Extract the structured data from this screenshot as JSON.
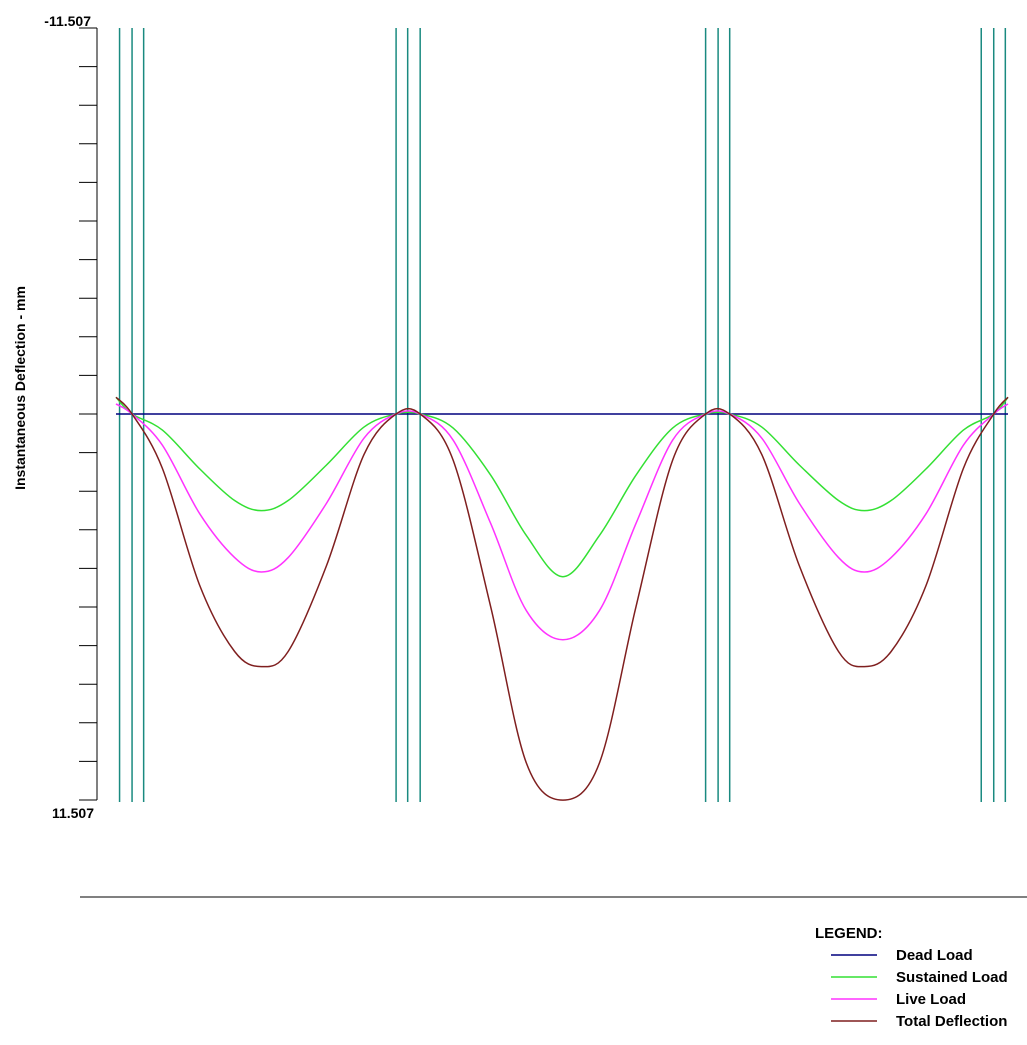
{
  "chart_data": {
    "type": "line",
    "ylabel": "Instantaneous Deflection - mm",
    "xlabel": "",
    "title": "",
    "ylim": [
      -11.507,
      11.507
    ],
    "y_inverted": true,
    "y_tick_labels": {
      "top": "-11.507",
      "bottom": "11.507"
    },
    "y_minor_tick_count": 19,
    "x_range": [
      0,
      1
    ],
    "span_count": 3,
    "support_line_groups": [
      [
        0.004,
        0.018,
        0.031
      ],
      [
        0.314,
        0.327,
        0.341
      ],
      [
        0.661,
        0.675,
        0.688
      ],
      [
        0.97,
        0.984,
        0.997
      ]
    ],
    "series": [
      {
        "name": "Dead Load",
        "color": "#00007f",
        "points": [
          [
            0,
            0
          ],
          [
            1,
            0
          ]
        ]
      },
      {
        "name": "Sustained Load",
        "color": "#33e033",
        "points": [
          [
            0,
            -0.5
          ],
          [
            0.018,
            0
          ],
          [
            0.052,
            0.48
          ],
          [
            0.094,
            1.64
          ],
          [
            0.133,
            2.58
          ],
          [
            0.163,
            2.88
          ],
          [
            0.193,
            2.58
          ],
          [
            0.236,
            1.52
          ],
          [
            0.278,
            0.39
          ],
          [
            0.314,
            0
          ],
          [
            0.341,
            0
          ],
          [
            0.378,
            0.42
          ],
          [
            0.42,
            1.82
          ],
          [
            0.46,
            3.62
          ],
          [
            0.501,
            4.85
          ],
          [
            0.542,
            3.62
          ],
          [
            0.583,
            1.82
          ],
          [
            0.624,
            0.42
          ],
          [
            0.661,
            0
          ],
          [
            0.688,
            0
          ],
          [
            0.724,
            0.39
          ],
          [
            0.766,
            1.52
          ],
          [
            0.81,
            2.58
          ],
          [
            0.839,
            2.88
          ],
          [
            0.869,
            2.58
          ],
          [
            0.908,
            1.64
          ],
          [
            0.95,
            0.48
          ],
          [
            0.984,
            0
          ],
          [
            1,
            -0.5
          ]
        ]
      },
      {
        "name": "Live Load",
        "color": "#ff33ff",
        "points": [
          [
            0,
            -0.3
          ],
          [
            0.018,
            0
          ],
          [
            0.052,
            0.93
          ],
          [
            0.094,
            2.98
          ],
          [
            0.133,
            4.28
          ],
          [
            0.163,
            4.71
          ],
          [
            0.193,
            4.28
          ],
          [
            0.236,
            2.66
          ],
          [
            0.278,
            0.72
          ],
          [
            0.314,
            0
          ],
          [
            0.341,
            0
          ],
          [
            0.378,
            0.78
          ],
          [
            0.42,
            3.26
          ],
          [
            0.46,
            5.86
          ],
          [
            0.501,
            6.73
          ],
          [
            0.542,
            5.86
          ],
          [
            0.583,
            3.26
          ],
          [
            0.624,
            0.78
          ],
          [
            0.661,
            0
          ],
          [
            0.688,
            0
          ],
          [
            0.724,
            0.72
          ],
          [
            0.766,
            2.66
          ],
          [
            0.81,
            4.28
          ],
          [
            0.839,
            4.71
          ],
          [
            0.869,
            4.28
          ],
          [
            0.908,
            2.98
          ],
          [
            0.95,
            0.93
          ],
          [
            0.984,
            0
          ],
          [
            1,
            -0.3
          ]
        ]
      },
      {
        "name": "Total Deflection",
        "color": "#7f1f1f",
        "points": [
          [
            0,
            -0.5
          ],
          [
            0.018,
            0
          ],
          [
            0.052,
            1.62
          ],
          [
            0.094,
            5.12
          ],
          [
            0.133,
            7.08
          ],
          [
            0.163,
            7.53
          ],
          [
            0.193,
            7.08
          ],
          [
            0.236,
            4.52
          ],
          [
            0.278,
            1.21
          ],
          [
            0.314,
            0
          ],
          [
            0.341,
            0
          ],
          [
            0.378,
            1.38
          ],
          [
            0.42,
            5.74
          ],
          [
            0.46,
            10.4
          ],
          [
            0.501,
            11.51
          ],
          [
            0.542,
            10.4
          ],
          [
            0.583,
            5.74
          ],
          [
            0.624,
            1.38
          ],
          [
            0.661,
            0
          ],
          [
            0.688,
            0
          ],
          [
            0.724,
            1.21
          ],
          [
            0.766,
            4.52
          ],
          [
            0.81,
            7.08
          ],
          [
            0.839,
            7.53
          ],
          [
            0.869,
            7.08
          ],
          [
            0.908,
            5.12
          ],
          [
            0.95,
            1.62
          ],
          [
            0.984,
            0
          ],
          [
            1,
            -0.5
          ]
        ]
      }
    ],
    "legend": {
      "title": "LEGEND:",
      "placement": "bottom-right",
      "entries": [
        "Dead Load",
        "Sustained Load",
        "Live Load",
        "Total Deflection"
      ]
    }
  }
}
